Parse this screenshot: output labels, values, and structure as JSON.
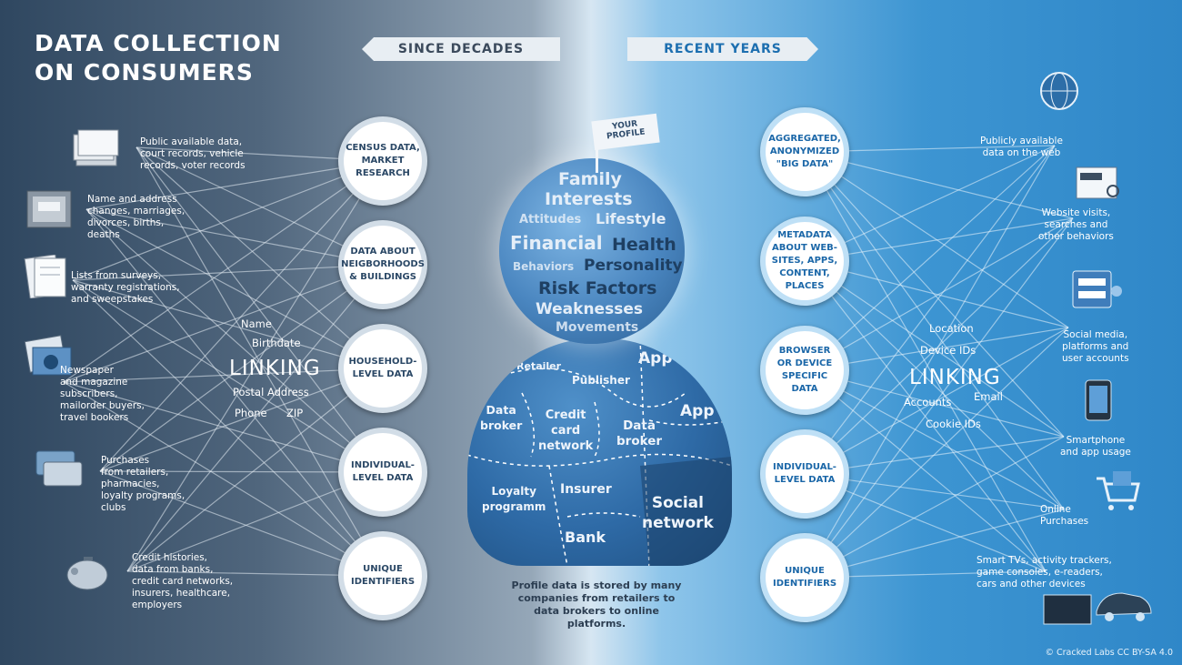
{
  "title": {
    "line1": "DATA COLLECTION",
    "line2": "ON CONSUMERS"
  },
  "banners": {
    "left": "SINCE DECADES",
    "right": "RECENT YEARS"
  },
  "left_circles": [
    "CENSUS DATA,\nMARKET\nRESEARCH",
    "DATA ABOUT\nNEIGBORHOODS\n& BUILDINGS",
    "HOUSEHOLD-\nLEVEL DATA",
    "INDIVIDUAL-\nLEVEL DATA",
    "UNIQUE\nIDENTIFIERS"
  ],
  "right_circles": [
    "AGGREGATED,\nANONYMIZED\n\"BIG DATA\"",
    "METADATA\nABOUT WEB-\nSITES, APPS,\nCONTENT,\nPLACES",
    "BROWSER\nOR DEVICE\nSPECIFIC\nDATA",
    "INDIVIDUAL-\nLEVEL DATA",
    "UNIQUE\nIDENTIFIERS"
  ],
  "left_sources": [
    {
      "text": "Public available data,\ncourt records, vehicle\nrecords, voter records",
      "icon": "documents-icon"
    },
    {
      "text": "Name and address\nchanges, marriages,\ndivorces, births,\ndeaths",
      "icon": "mailbox-icon"
    },
    {
      "text": "Lists from surveys,\nwarranty registrations,\nand sweepstakes",
      "icon": "forms-icon"
    },
    {
      "text": "Newspaper\nand magazine\nsubscribers,\nmailorder buyers,\ntravel bookers",
      "icon": "catalogue-icon"
    },
    {
      "text": "Purchases\nfrom retailers,\npharmacies,\nloyalty programs,\nclubs",
      "icon": "cards-icon"
    },
    {
      "text": "Credit histories,\ndata from banks,\ncredit card networks,\ninsurers, healthcare,\nemployers",
      "icon": "piggy-bank-icon"
    }
  ],
  "right_sources": [
    {
      "text": "Publicly available\ndata on the web",
      "icon": "globe-icon"
    },
    {
      "text": "Website visits,\nsearches and\nother behaviors",
      "icon": "browser-icon"
    },
    {
      "text": "Social media,\nplatforms and\nuser accounts",
      "icon": "login-icon"
    },
    {
      "text": "Smartphone\nand app usage",
      "icon": "smartphone-icon"
    },
    {
      "text": "Online\nPurchases",
      "icon": "cart-icon"
    },
    {
      "text": "Smart TVs, activity trackers,\ngame consoles, e-readers,\ncars and other devices",
      "icon": "devices-icon"
    }
  ],
  "left_linking": {
    "title": "LINKING",
    "words": [
      "Name",
      "Birthdate",
      "Postal Address",
      "Phone",
      "ZIP"
    ]
  },
  "right_linking": {
    "title": "LINKING",
    "words": [
      "Location",
      "Device IDs",
      "Accounts",
      "Email",
      "Cookie IDs"
    ]
  },
  "profile": {
    "flag": "YOUR\nPROFILE",
    "head_words": [
      "Family",
      "Interests",
      "Attitudes",
      "Lifestyle",
      "Financial",
      "Health",
      "Behaviors",
      "Personality",
      "Risk Factors",
      "Weaknesses",
      "Movements"
    ],
    "body_words": [
      "Retailer",
      "Publisher",
      "App",
      "Data\nbroker",
      "Credit\ncard\nnetwork",
      "Data\nbroker",
      "App",
      "Loyalty\nprogramm",
      "Insurer",
      "Social\nnetwork",
      "Bank"
    ]
  },
  "caption": "Profile data is stored by many companies from retailers to data brokers to online platforms.",
  "credit": "© Cracked Labs CC BY-SA 4.0",
  "colors": {
    "left_bg": "#2f4760",
    "right_bg": "#2f87c8",
    "circle_text_left": "#2b4866",
    "circle_text_right": "#1b67a8"
  }
}
